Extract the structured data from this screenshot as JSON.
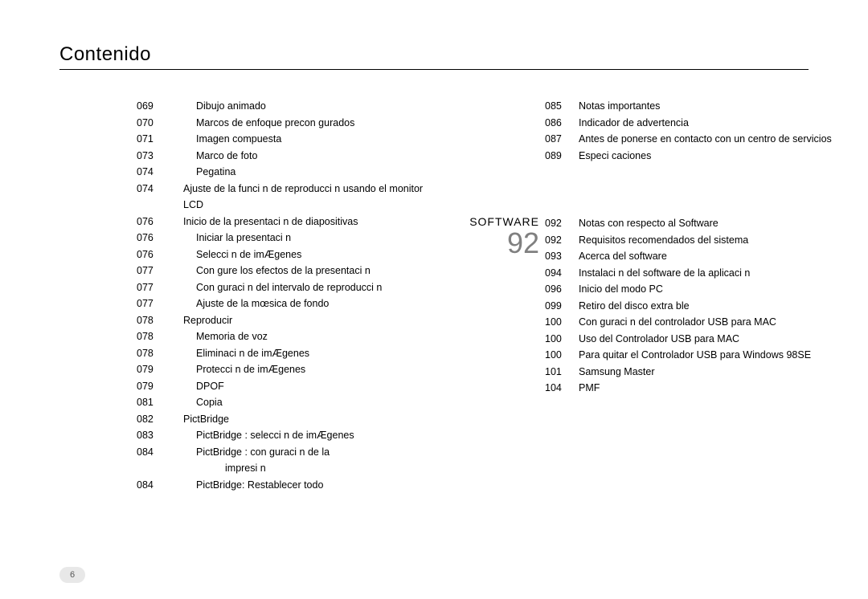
{
  "page": {
    "title": "Contenido",
    "number": "6"
  },
  "section": {
    "label": "SOFTWARE",
    "start_page": "92"
  },
  "left_entries": [
    {
      "page": "069",
      "text": "Dibujo animado",
      "indent": 2
    },
    {
      "page": "070",
      "text": "Marcos de enfoque precon gurados",
      "indent": 2
    },
    {
      "page": "071",
      "text": "Imagen compuesta",
      "indent": 2
    },
    {
      "page": "073",
      "text": "Marco de foto",
      "indent": 2
    },
    {
      "page": "074",
      "text": "Pegatina",
      "indent": 2
    },
    {
      "page": "074",
      "text": "Ajuste de la funci n de reproducci n usando el monitor LCD",
      "indent": 1
    },
    {
      "page": "076",
      "text": "Inicio de la presentaci n de diapositivas",
      "indent": 1
    },
    {
      "page": "076",
      "text": "Iniciar la presentaci n",
      "indent": 2
    },
    {
      "page": "076",
      "text": "Selecci n de imÆgenes",
      "indent": 2
    },
    {
      "page": "077",
      "text": "Con gure los efectos de la presentaci n",
      "indent": 2
    },
    {
      "page": "077",
      "text": "Con guraci n del intervalo de reproducci n",
      "indent": 2
    },
    {
      "page": "077",
      "text": "Ajuste de la mœsica de fondo",
      "indent": 2
    },
    {
      "page": "078",
      "text": "Reproducir",
      "indent": 1
    },
    {
      "page": "078",
      "text": "Memoria de voz",
      "indent": 2
    },
    {
      "page": "078",
      "text": "Eliminaci n de imÆgenes",
      "indent": 2
    },
    {
      "page": "079",
      "text": "Protecci n de imÆgenes",
      "indent": 2
    },
    {
      "page": "079",
      "text": "DPOF",
      "indent": 2
    },
    {
      "page": "081",
      "text": "Copia",
      "indent": 2
    },
    {
      "page": "082",
      "text": "PictBridge",
      "indent": 1
    },
    {
      "page": "083",
      "text": "PictBridge : selecci n de imÆgenes",
      "indent": 2
    },
    {
      "page": "084",
      "text": "PictBridge : con guraci n de la",
      "indent": 2
    },
    {
      "page": "",
      "text": "impresi n",
      "indent": 3
    },
    {
      "page": "084",
      "text": "PictBridge: Restablecer todo",
      "indent": 2
    }
  ],
  "right_top_entries": [
    {
      "page": "085",
      "text": "Notas importantes"
    },
    {
      "page": "086",
      "text": "Indicador de advertencia"
    },
    {
      "page": "087",
      "text": "Antes de ponerse en contacto con un centro de servicios"
    },
    {
      "page": "089",
      "text": "Especi caciones"
    }
  ],
  "right_bottom_entries": [
    {
      "page": "092",
      "text": "Notas con respecto al Software"
    },
    {
      "page": "092",
      "text": "Requisitos recomendados del sistema"
    },
    {
      "page": "093",
      "text": "Acerca del software"
    },
    {
      "page": "094",
      "text": "Instalaci n del software de la aplicaci n"
    },
    {
      "page": "096",
      "text": "Inicio del modo PC"
    },
    {
      "page": "099",
      "text": "Retiro del disco extra ble"
    },
    {
      "page": "100",
      "text": "Con guraci n del controlador USB para MAC"
    },
    {
      "page": "100",
      "text": "Uso del Controlador USB para MAC"
    },
    {
      "page": "100",
      "text": "Para quitar el Controlador USB para Windows 98SE"
    },
    {
      "page": "101",
      "text": "Samsung Master"
    },
    {
      "page": "104",
      "text": "PMF"
    }
  ]
}
